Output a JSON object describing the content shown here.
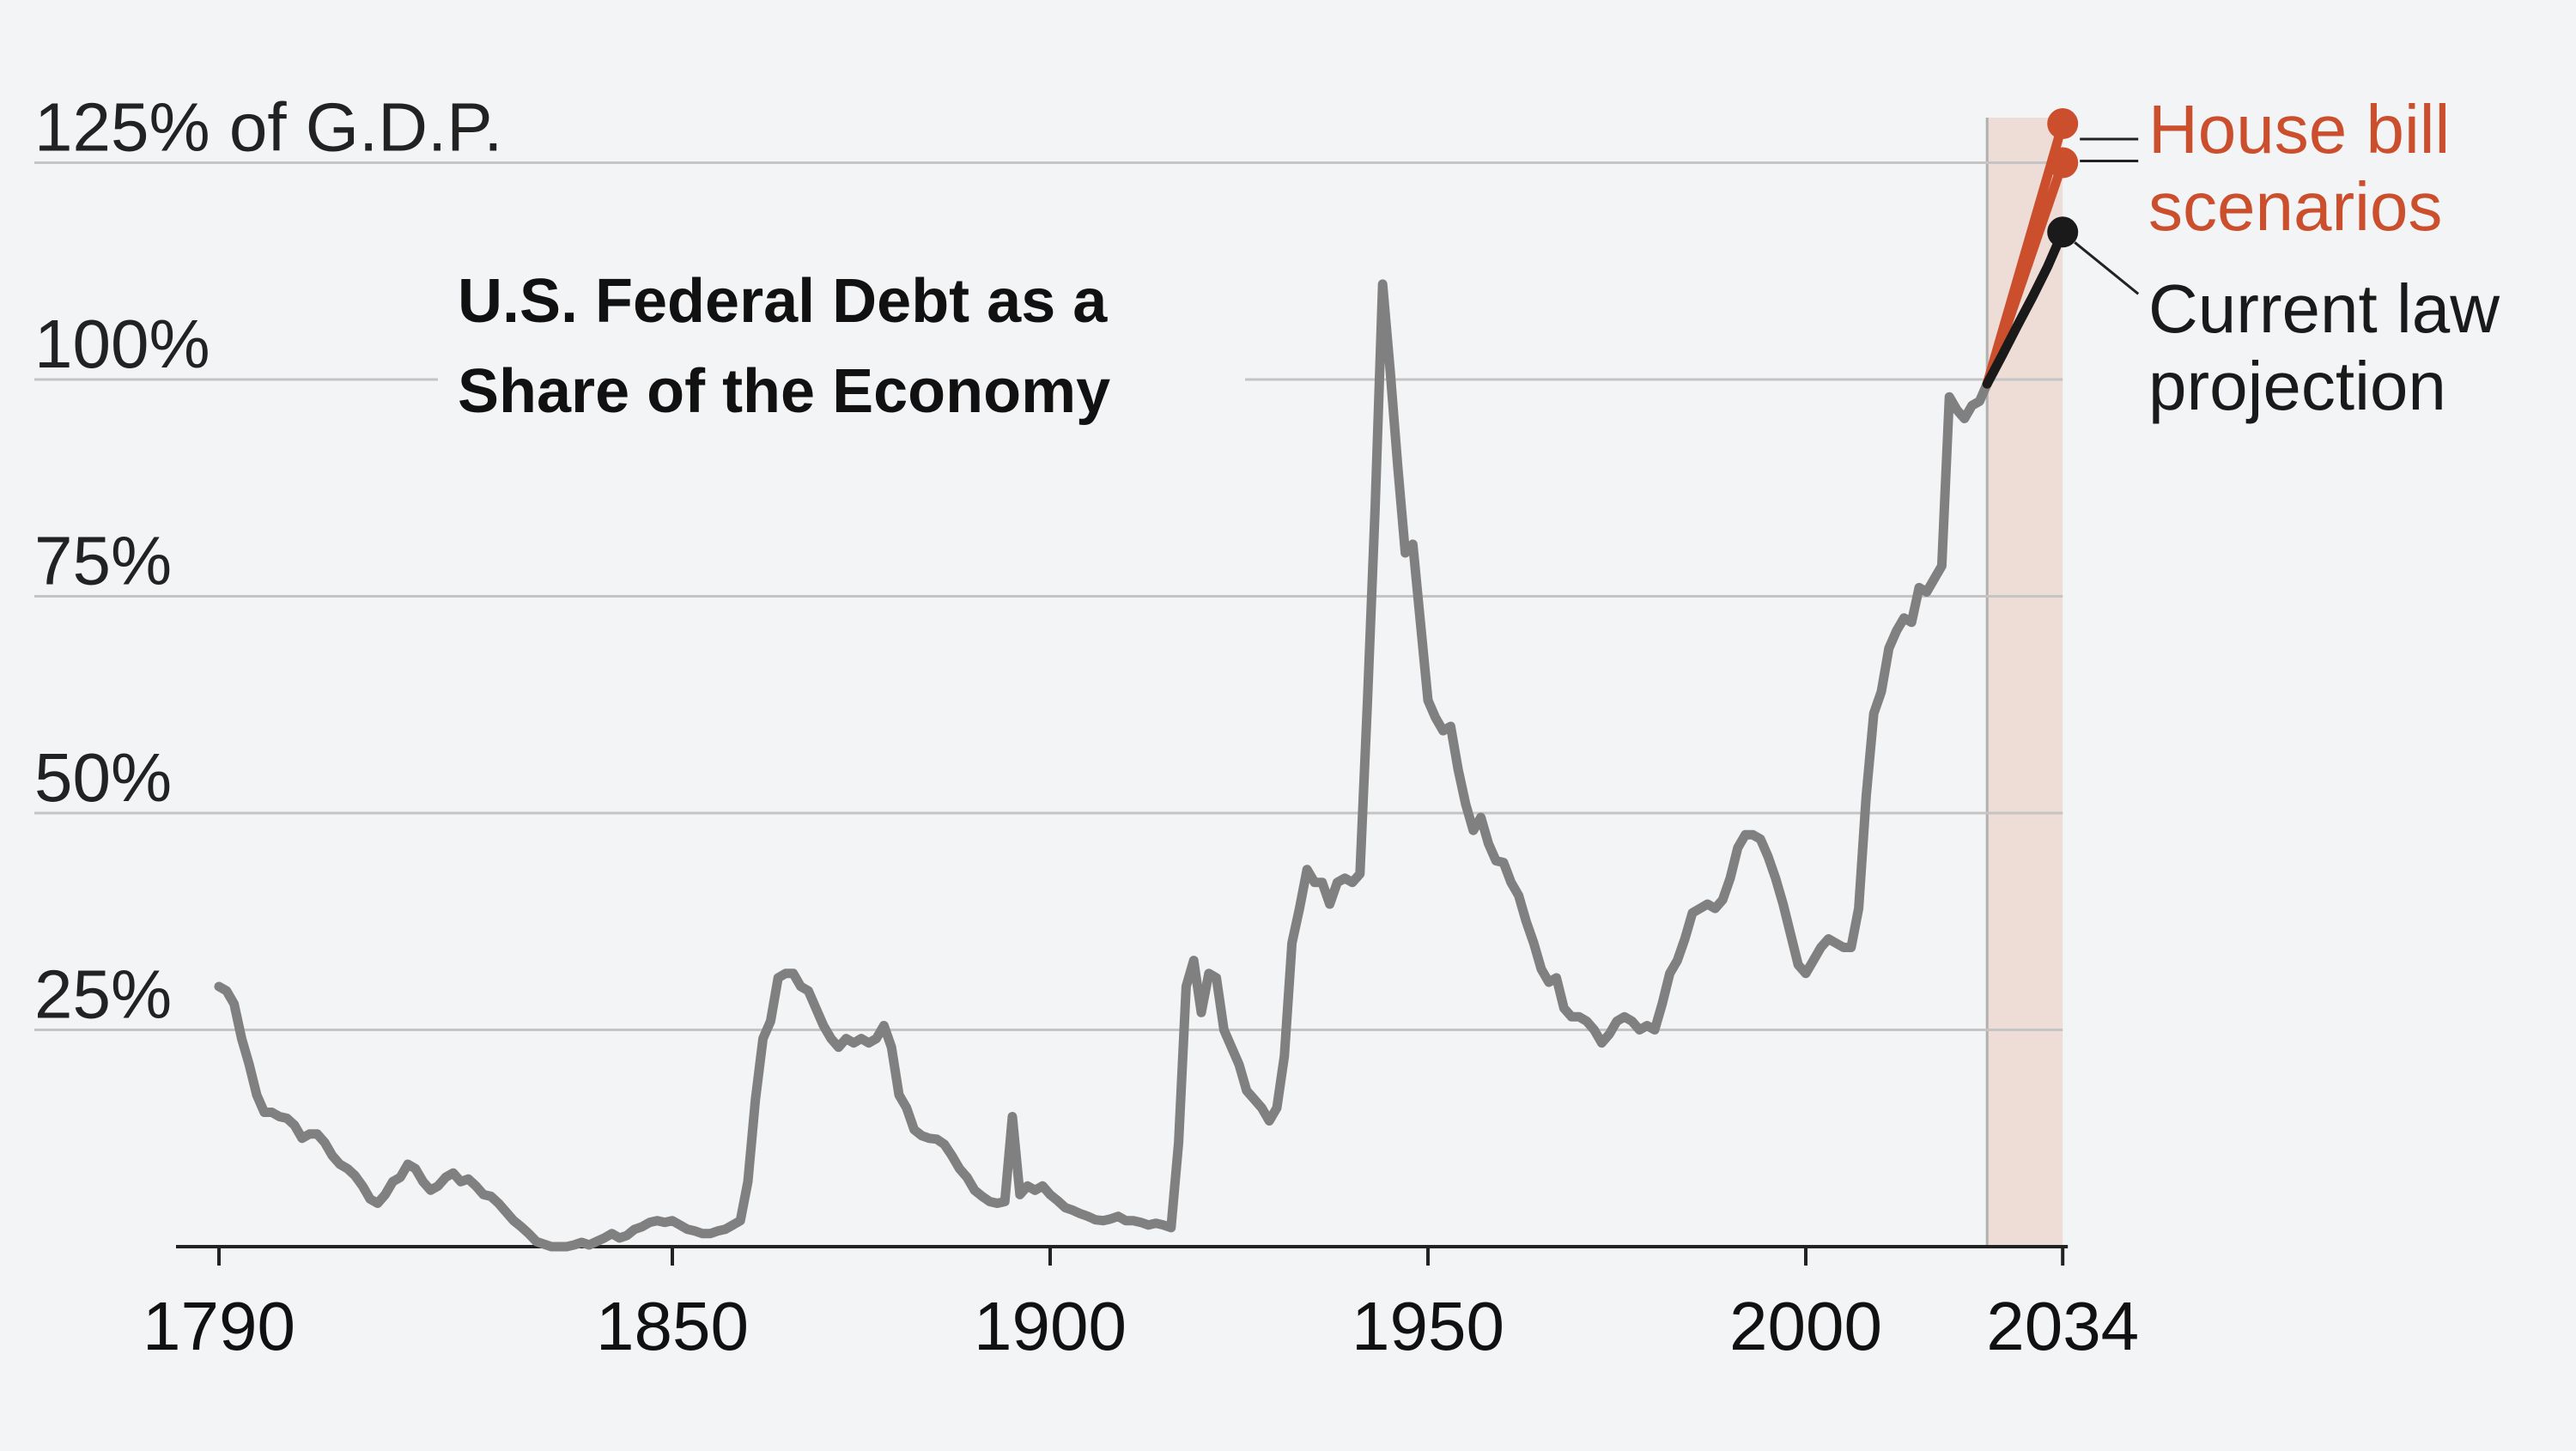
{
  "chart_data": {
    "type": "line",
    "title": "U.S. Federal Debt as a Share of the Economy",
    "title_lines": [
      "U.S. Federal Debt as a",
      "Share of the Economy"
    ],
    "ylabel": "",
    "xlabel": "",
    "y_tick_labels": [
      "25%",
      "50%",
      "75%",
      "100%",
      "125% of G.D.P."
    ],
    "y_ticks": [
      25,
      50,
      75,
      100,
      125
    ],
    "ylim": [
      0,
      130
    ],
    "x_tick_labels": [
      "1790",
      "1850",
      "1900",
      "1950",
      "2000",
      "2034"
    ],
    "x_ticks": [
      1790,
      1850,
      1900,
      1950,
      2000,
      2034
    ],
    "xlim": [
      1785,
      2040
    ],
    "grid": true,
    "projection_shading": {
      "x_start": 2024,
      "x_end": 2034,
      "color": "#eeddd7"
    },
    "colors": {
      "historical": "#808080",
      "house_bill": "#cb4e2d",
      "current_law": "#1a1a1a",
      "grid": "#c4c4c4",
      "background": "#f3f4f6"
    },
    "series": [
      {
        "name": "",
        "role": "historical",
        "x": [
          1790,
          1791,
          1792,
          1793,
          1794,
          1795,
          1796,
          1797,
          1798,
          1799,
          1800,
          1801,
          1802,
          1803,
          1804,
          1805,
          1806,
          1807,
          1808,
          1809,
          1810,
          1811,
          1812,
          1813,
          1814,
          1815,
          1816,
          1817,
          1818,
          1819,
          1820,
          1821,
          1822,
          1823,
          1824,
          1825,
          1826,
          1827,
          1828,
          1829,
          1830,
          1831,
          1832,
          1833,
          1834,
          1835,
          1836,
          1837,
          1838,
          1839,
          1840,
          1841,
          1842,
          1843,
          1844,
          1845,
          1846,
          1847,
          1848,
          1849,
          1850,
          1851,
          1852,
          1853,
          1854,
          1855,
          1856,
          1857,
          1858,
          1859,
          1860,
          1861,
          1862,
          1863,
          1864,
          1865,
          1866,
          1867,
          1868,
          1869,
          1870,
          1871,
          1872,
          1873,
          1874,
          1875,
          1876,
          1877,
          1878,
          1879,
          1880,
          1881,
          1882,
          1883,
          1884,
          1885,
          1886,
          1887,
          1888,
          1889,
          1890,
          1891,
          1892,
          1893,
          1894,
          1895,
          1896,
          1897,
          1898,
          1899,
          1900,
          1901,
          1902,
          1903,
          1904,
          1905,
          1906,
          1907,
          1908,
          1909,
          1910,
          1911,
          1912,
          1913,
          1914,
          1915,
          1916,
          1917,
          1918,
          1919,
          1920,
          1921,
          1922,
          1923,
          1924,
          1925,
          1926,
          1927,
          1928,
          1929,
          1930,
          1931,
          1932,
          1933,
          1934,
          1935,
          1936,
          1937,
          1938,
          1939,
          1940,
          1941,
          1942,
          1943,
          1944,
          1945,
          1946,
          1947,
          1948,
          1949,
          1950,
          1951,
          1952,
          1953,
          1954,
          1955,
          1956,
          1957,
          1958,
          1959,
          1960,
          1961,
          1962,
          1963,
          1964,
          1965,
          1966,
          1967,
          1968,
          1969,
          1970,
          1971,
          1972,
          1973,
          1974,
          1975,
          1976,
          1977,
          1978,
          1979,
          1980,
          1981,
          1982,
          1983,
          1984,
          1985,
          1986,
          1987,
          1988,
          1989,
          1990,
          1991,
          1992,
          1993,
          1994,
          1995,
          1996,
          1997,
          1998,
          1999,
          2000,
          2001,
          2002,
          2003,
          2004,
          2005,
          2006,
          2007,
          2008,
          2009,
          2010,
          2011,
          2012,
          2013,
          2014,
          2015,
          2016,
          2017,
          2018,
          2019,
          2020,
          2021,
          2022,
          2023,
          2024
        ],
        "values": [
          30,
          29.5,
          28,
          24,
          21,
          17.5,
          15.5,
          15.5,
          15,
          14.8,
          14,
          12.5,
          13,
          13,
          12,
          10.5,
          9.5,
          9,
          8.2,
          7,
          5.5,
          5,
          6,
          7.5,
          8,
          9.5,
          9,
          7.5,
          6.5,
          7,
          8,
          8.5,
          7.5,
          7.8,
          7,
          6,
          5.8,
          5,
          4,
          3,
          2.3,
          1.5,
          0.6,
          0.3,
          0,
          0,
          0,
          0.2,
          0.5,
          0.2,
          0.6,
          1,
          1.5,
          1,
          1.3,
          2,
          2.3,
          2.8,
          3,
          2.8,
          3,
          2.5,
          2,
          1.8,
          1.5,
          1.5,
          1.8,
          2,
          2.5,
          3,
          7.5,
          17,
          24,
          26,
          31,
          31.5,
          31.5,
          30,
          29.5,
          27.5,
          25.5,
          24,
          23,
          24,
          23.5,
          24,
          23.5,
          24,
          25.5,
          23,
          17.5,
          16,
          13.5,
          12.8,
          12.5,
          12.4,
          11.8,
          10.5,
          9,
          8,
          6.5,
          5.8,
          5.2,
          5,
          5.2,
          15,
          6,
          7,
          6.5,
          7,
          6,
          5.3,
          4.5,
          4.2,
          3.8,
          3.5,
          3.1,
          3,
          3.2,
          3.5,
          3,
          3,
          2.8,
          2.5,
          2.7,
          2.5,
          2.2,
          12,
          30,
          33,
          27,
          31.5,
          31,
          25,
          23,
          21,
          18,
          17,
          16,
          14.5,
          16,
          22,
          35,
          39,
          43.5,
          42,
          42,
          39.5,
          42,
          42.5,
          42,
          43,
          63,
          85,
          111,
          101,
          90,
          80,
          81,
          72,
          63,
          61,
          59.5,
          60,
          55,
          51,
          48,
          49.5,
          46.5,
          44.5,
          44.3,
          42,
          40.5,
          37.5,
          35,
          32,
          30.5,
          31,
          27.5,
          26.5,
          26.5,
          26,
          25,
          23.5,
          24.5,
          26,
          26.5,
          26,
          25,
          25.5,
          25,
          28,
          31.5,
          33,
          35.5,
          38.5,
          39,
          39.5,
          39,
          40,
          42.5,
          46,
          47.5,
          47.5,
          47,
          45,
          42.5,
          39.5,
          36,
          32.5,
          31.5,
          33,
          34.5,
          35.5,
          35,
          34.5,
          34.5,
          39,
          52,
          61.5,
          64,
          69,
          71,
          72.5,
          72,
          76,
          75.5,
          77,
          78.5,
          98,
          96.5,
          95.5,
          97,
          97.5,
          99.5
        ]
      },
      {
        "name": "House bill scenarios",
        "role": "house_bill",
        "lines": [
          {
            "x": [
              2024,
              2034
            ],
            "values": [
              99.5,
              129.5
            ]
          },
          {
            "x": [
              2024,
              2034
            ],
            "values": [
              99.5,
              125
            ]
          }
        ]
      },
      {
        "name": "Current law projection",
        "role": "current_law",
        "x": [
          2024,
          2026,
          2028,
          2030,
          2032,
          2034
        ],
        "values": [
          99.5,
          102.8,
          106.2,
          109.5,
          113,
          117
        ]
      }
    ],
    "annotations": {
      "house_bill_label": [
        "House bill",
        "scenarios"
      ],
      "current_law_label": [
        "Current law",
        "projection"
      ]
    },
    "legend": "right"
  }
}
